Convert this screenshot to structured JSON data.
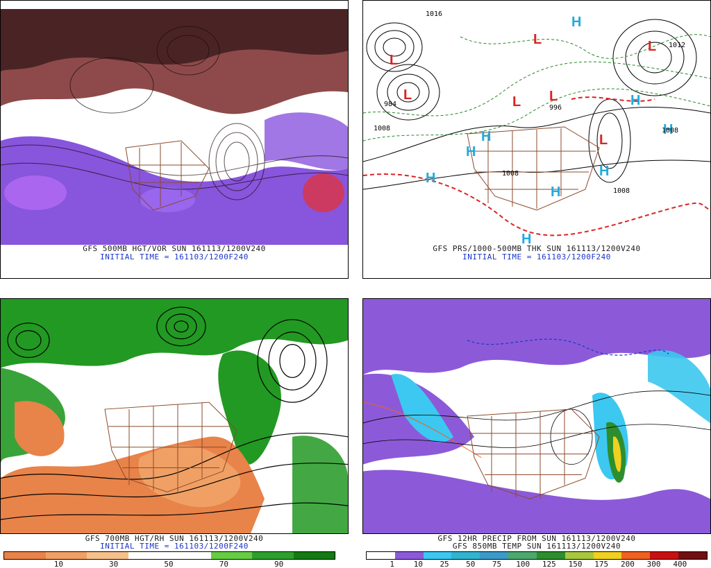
{
  "panels": [
    {
      "caption1": "GFS 500MB HGT/VOR SUN 161113/1200V240",
      "caption2": "INITIAL TIME = 161103/1200F240"
    },
    {
      "caption1": "GFS PRS/1000-500MB THK SUN 161113/1200V240",
      "caption2": "INITIAL TIME = 161103/1200F240",
      "pressure_labels": [
        "L",
        "L",
        "L",
        "L",
        "L",
        "L",
        "L",
        "H",
        "H",
        "H",
        "H",
        "H",
        "H",
        "H",
        "H",
        "H"
      ],
      "isobar_values": [
        "1016",
        "1008",
        "984",
        "1008",
        "996",
        "1008",
        "1012",
        "1008"
      ]
    },
    {
      "caption1": "GFS 700MB HGT/RH SUN 161113/1200V240",
      "caption2": "INITIAL TIME = 161103/1200F240",
      "legend_ticks": [
        "10",
        "30",
        "50",
        "70",
        "90"
      ],
      "legend_colors": [
        "#e8834a",
        "#f0a064",
        "#f6c08c",
        "#ffffff",
        "#ffffff",
        "#66cc44",
        "#2e9e2e",
        "#147a14"
      ]
    },
    {
      "caption1": "GFS 12HR PRECIP FROM SUN 161113/1200V240",
      "caption2": "GFS 850MB TEMP SUN 161113/1200V240",
      "legend_ticks": [
        "1",
        "10",
        "25",
        "50",
        "75",
        "100",
        "125",
        "150",
        "175",
        "200",
        "300",
        "400"
      ],
      "legend_colors": [
        "#ffffff",
        "#8c5ad8",
        "#3cc8f0",
        "#30b4d0",
        "#3c9ac8",
        "#4ca86c",
        "#2e8e2e",
        "#a8c840",
        "#f0d020",
        "#f06020",
        "#c81010",
        "#701010"
      ]
    }
  ],
  "colors": {
    "vorticity_purple": "#8855dd",
    "vorticity_red": "#dd3344",
    "rh_green": "#229922",
    "rh_orange": "#e8834a",
    "precip_cyan": "#44ccee",
    "low_red": "#dd2222",
    "high_blue": "#22aadd",
    "borders_brown": "#8b4a2b"
  }
}
